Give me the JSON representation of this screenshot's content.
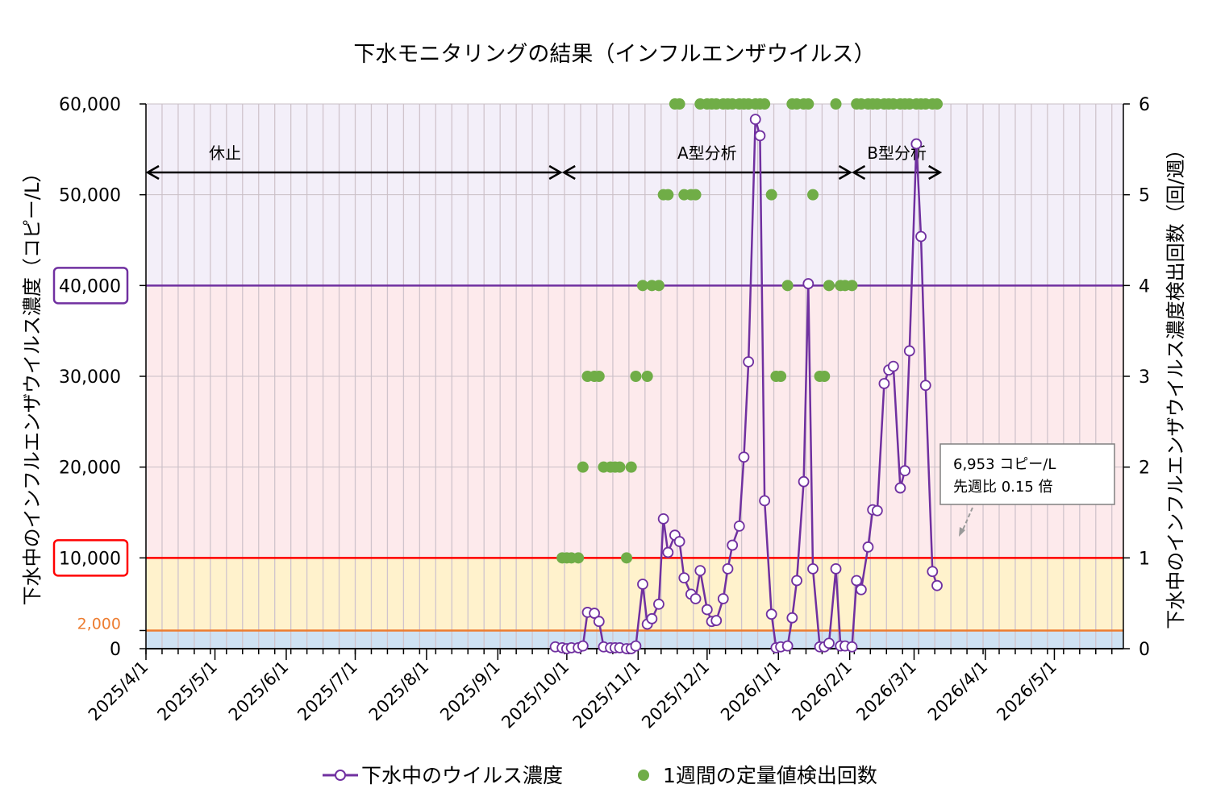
{
  "chart_data": {
    "type": "line",
    "title": "下水モニタリングの結果（インフルエンザウイルス）",
    "ylabel": "下水中のインフルエンザウイルス濃度（コピー/L）",
    "y2label": "下水中のインフルエンザウイルス濃度検出回数（回/週）",
    "xlim": [
      "2025/4/1",
      "2026/5/31"
    ],
    "ylim": [
      0,
      60000
    ],
    "y2lim": [
      0,
      6
    ],
    "x_ticks": [
      "2025/4/1",
      "2025/5/1",
      "2025/6/1",
      "2025/7/1",
      "2025/8/1",
      "2025/9/1",
      "2025/10/1",
      "2025/11/1",
      "2025/12/1",
      "2026/1/1",
      "2026/2/1",
      "2026/3/1",
      "2026/4/1",
      "2026/5/1"
    ],
    "y_ticks": [
      "0",
      "2,000",
      "10,000",
      "20,000",
      "30,000",
      "40,000",
      "50,000",
      "60,000"
    ],
    "y_tick_values": [
      0,
      2000,
      10000,
      20000,
      30000,
      40000,
      50000,
      60000
    ],
    "y2_ticks": [
      "0",
      "1",
      "2",
      "3",
      "4",
      "5",
      "6"
    ],
    "grid": true,
    "legend_placement": "bottom",
    "bands": [
      {
        "from": 0,
        "to": 2000,
        "color": "#cfe2f3"
      },
      {
        "from": 2000,
        "to": 10000,
        "color": "#fff2cc"
      },
      {
        "from": 10000,
        "to": 40000,
        "color": "#fdeaec"
      },
      {
        "from": 40000,
        "to": 60000,
        "color": "#f3eff9"
      }
    ],
    "threshold_lines": [
      {
        "value": 2000,
        "color": "#ed7d31",
        "boxed": false
      },
      {
        "value": 10000,
        "color": "#ff0000",
        "boxed": true
      },
      {
        "value": 40000,
        "color": "#7030a0",
        "boxed": true
      }
    ],
    "periods": [
      {
        "label": "休止",
        "from": "2025/4/1",
        "to": "2025/9/29"
      },
      {
        "label": "A型分析",
        "from": "2025/9/29",
        "to": "2026/2/2"
      },
      {
        "label": "B型分析",
        "from": "2026/2/2",
        "to": "2026/3/13"
      }
    ],
    "annotation": {
      "line1": "6,953 コピー/L",
      "line2": "先週比  0.15 倍"
    },
    "series": [
      {
        "name": "下水中のウイルス濃度",
        "axis": "left",
        "color": "#7030a0",
        "marker": "open-circle",
        "x": [
          "2025/9/26",
          "2025/9/29",
          "2025/10/1",
          "2025/10/3",
          "2025/10/6",
          "2025/10/8",
          "2025/10/10",
          "2025/10/13",
          "2025/10/15",
          "2025/10/17",
          "2025/10/20",
          "2025/10/22",
          "2025/10/24",
          "2025/10/27",
          "2025/10/29",
          "2025/10/31",
          "2025/11/3",
          "2025/11/5",
          "2025/11/7",
          "2025/11/10",
          "2025/11/12",
          "2025/11/14",
          "2025/11/17",
          "2025/11/19",
          "2025/11/21",
          "2025/11/24",
          "2025/11/26",
          "2025/11/28",
          "2025/12/1",
          "2025/12/3",
          "2025/12/5",
          "2025/12/8",
          "2025/12/10",
          "2025/12/12",
          "2025/12/15",
          "2025/12/17",
          "2025/12/19",
          "2025/12/22",
          "2025/12/24",
          "2025/12/26",
          "2025/12/29",
          "2025/12/31",
          "2026/1/2",
          "2026/1/5",
          "2026/1/7",
          "2026/1/9",
          "2026/1/12",
          "2026/1/14",
          "2026/1/16",
          "2026/1/19",
          "2026/1/21",
          "2026/1/23",
          "2026/1/26",
          "2026/1/28",
          "2026/1/30",
          "2026/2/2",
          "2026/2/4",
          "2026/2/6",
          "2026/2/9",
          "2026/2/11",
          "2026/2/13",
          "2026/2/16",
          "2026/2/18",
          "2026/2/20",
          "2026/2/23",
          "2026/2/25",
          "2026/2/27",
          "2026/3/2",
          "2026/3/4",
          "2026/3/6",
          "2026/3/9",
          "2026/3/11"
        ],
        "values": [
          200,
          100,
          0,
          100,
          100,
          300,
          4000,
          3900,
          3000,
          200,
          100,
          100,
          100,
          0,
          0,
          300,
          7100,
          2700,
          3300,
          4900,
          14300,
          10600,
          12500,
          11800,
          7800,
          6000,
          5500,
          8600,
          4300,
          3000,
          3100,
          5500,
          8800,
          11400,
          13500,
          21100,
          31600,
          58300,
          56500,
          16300,
          3800,
          100,
          200,
          300,
          3400,
          7500,
          18400,
          40200,
          8800,
          200,
          200,
          600,
          8800,
          300,
          300,
          200,
          7500,
          6500,
          11200,
          15300,
          15200,
          29200,
          30700,
          31100,
          17700,
          19600,
          32800,
          55600,
          45400,
          29000,
          8500,
          6953
        ]
      },
      {
        "name": "1週間の定量値検出回数",
        "axis": "right",
        "color": "#70ad47",
        "marker": "filled-circle",
        "x": [
          "2025/9/29",
          "2025/10/1",
          "2025/10/3",
          "2025/10/6",
          "2025/10/8",
          "2025/10/10",
          "2025/10/13",
          "2025/10/15",
          "2025/10/17",
          "2025/10/20",
          "2025/10/22",
          "2025/10/24",
          "2025/10/27",
          "2025/10/29",
          "2025/10/31",
          "2025/11/3",
          "2025/11/5",
          "2025/11/7",
          "2025/11/10",
          "2025/11/12",
          "2025/11/14",
          "2025/11/17",
          "2025/11/19",
          "2025/11/21",
          "2025/11/24",
          "2025/11/26",
          "2025/11/28",
          "2025/12/1",
          "2025/12/3",
          "2025/12/5",
          "2025/12/8",
          "2025/12/10",
          "2025/12/12",
          "2025/12/15",
          "2025/12/17",
          "2025/12/19",
          "2025/12/22",
          "2025/12/24",
          "2025/12/26",
          "2025/12/29",
          "2025/12/31",
          "2026/1/2",
          "2026/1/5",
          "2026/1/7",
          "2026/1/9",
          "2026/1/12",
          "2026/1/14",
          "2026/1/16",
          "2026/1/19",
          "2026/1/21",
          "2026/1/23",
          "2026/1/26",
          "2026/1/28",
          "2026/1/30",
          "2026/2/2",
          "2026/2/4",
          "2026/2/6",
          "2026/2/9",
          "2026/2/11",
          "2026/2/13",
          "2026/2/16",
          "2026/2/18",
          "2026/2/20",
          "2026/2/23",
          "2026/2/25",
          "2026/2/27",
          "2026/3/2",
          "2026/3/4",
          "2026/3/6",
          "2026/3/9",
          "2026/3/11"
        ],
        "values": [
          1,
          1,
          1,
          1,
          2,
          3,
          3,
          3,
          2,
          2,
          2,
          2,
          1,
          2,
          3,
          4,
          3,
          4,
          4,
          5,
          5,
          6,
          6,
          5,
          5,
          5,
          6,
          6,
          6,
          6,
          6,
          6,
          6,
          6,
          6,
          6,
          6,
          6,
          6,
          5,
          3,
          3,
          4,
          6,
          6,
          6,
          6,
          5,
          3,
          3,
          4,
          6,
          4,
          4,
          4,
          6,
          6,
          6,
          6,
          6,
          6,
          6,
          6,
          6,
          6,
          6,
          6,
          6,
          6,
          6,
          6
        ]
      }
    ]
  }
}
